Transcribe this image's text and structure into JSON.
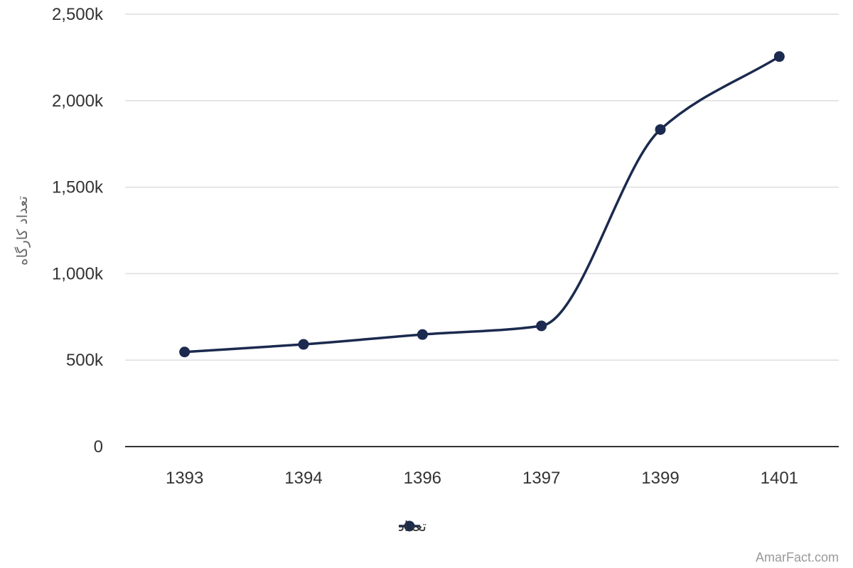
{
  "chart_data": {
    "type": "line",
    "categories": [
      "1393",
      "1394",
      "1396",
      "1397",
      "1399",
      "1401"
    ],
    "series": [
      {
        "name": "تعداد",
        "values": [
          547000,
          591000,
          648000,
          698000,
          1833000,
          2255000
        ],
        "color": "#1b2a4e"
      }
    ],
    "ylabel": "تعداد کارگاه",
    "xlabel": "",
    "ylim": [
      0,
      2500000
    ],
    "yticks": [
      {
        "value": 0,
        "label": "0"
      },
      {
        "value": 500000,
        "label": "500k"
      },
      {
        "value": 1000000,
        "label": "1,000k"
      },
      {
        "value": 1500000,
        "label": "1,500k"
      },
      {
        "value": 2000000,
        "label": "2,000k"
      },
      {
        "value": 2500000,
        "label": "2,500k"
      }
    ],
    "grid": true,
    "smooth": true,
    "legend_position": "bottom-center",
    "credit": "AmarFact.com"
  }
}
